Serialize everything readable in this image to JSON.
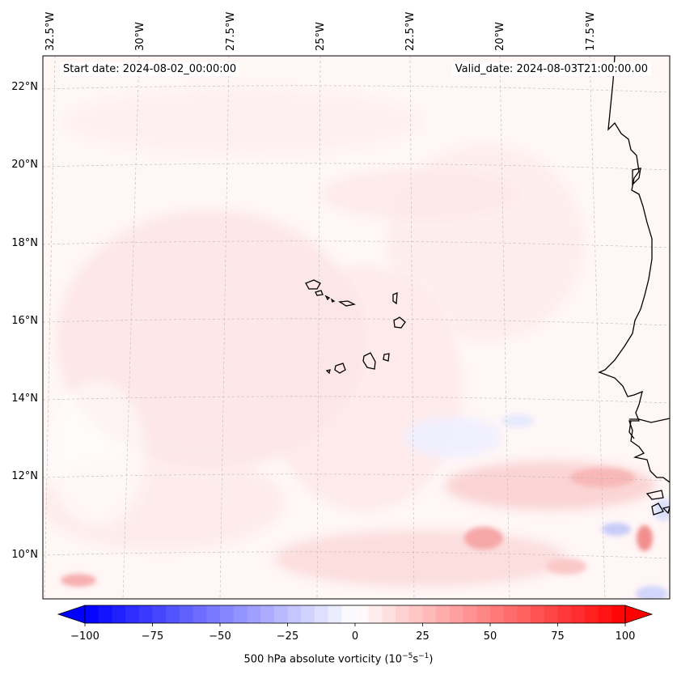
{
  "header": {
    "start_date": "Start date: 2024-08-02_00:00:00",
    "valid_date": "Valid_date: 2024-08-03T21:00:00.00"
  },
  "map": {
    "lon_labels": [
      "32.5°W",
      "30°W",
      "27.5°W",
      "25°W",
      "22.5°W",
      "20°W",
      "17.5°W"
    ],
    "lat_labels": [
      "22°N",
      "20°N",
      "18°N",
      "16°N",
      "14°N",
      "12°N",
      "10°N"
    ],
    "coastline_color": "#000000",
    "gridline_color": "#b0b0b0"
  },
  "colorbar": {
    "label_prefix": "500 hPa absolute vorticity (10",
    "label_exp1": "−5",
    "label_mid": "s",
    "label_exp2": "−1",
    "label_suffix": ")",
    "min": -100,
    "max": 100,
    "step": 5,
    "ticks": [
      "−100",
      "−75",
      "−50",
      "−25",
      "0",
      "25",
      "50",
      "75",
      "100"
    ],
    "negative_color": "#0000ff",
    "positive_color": "#ff0000"
  }
}
